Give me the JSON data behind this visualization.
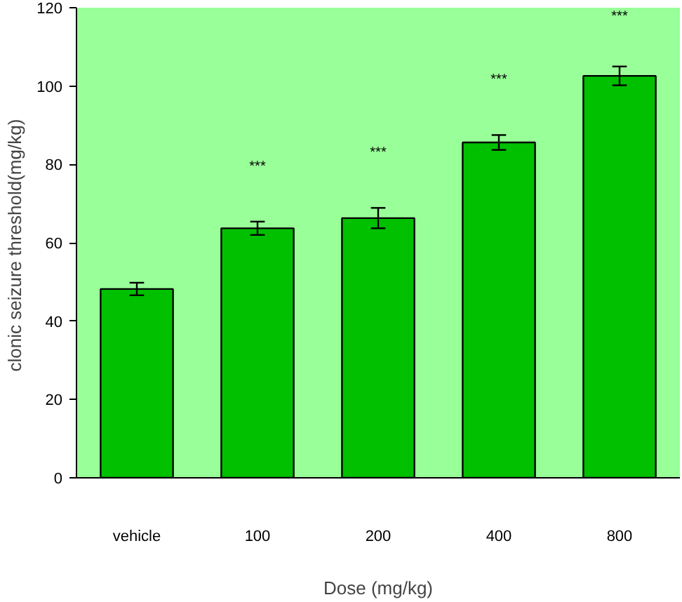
{
  "chart_data": {
    "type": "bar",
    "xlabel": "Dose (mg/kg)",
    "ylabel": "clonic seizure  threshold(mg/kg)",
    "categories": [
      "vehicle",
      "100",
      "200",
      "400",
      "800"
    ],
    "values": [
      48.2,
      63.7,
      66.3,
      85.6,
      102.6
    ],
    "errors": [
      1.6,
      1.7,
      2.6,
      1.9,
      2.4
    ],
    "color": "#00c000",
    "ylim": [
      0,
      120
    ],
    "yticks": [
      0,
      20,
      40,
      60,
      80,
      100,
      120
    ],
    "grid": false,
    "annotations": [
      "***",
      "***",
      "***",
      "***"
    ]
  }
}
